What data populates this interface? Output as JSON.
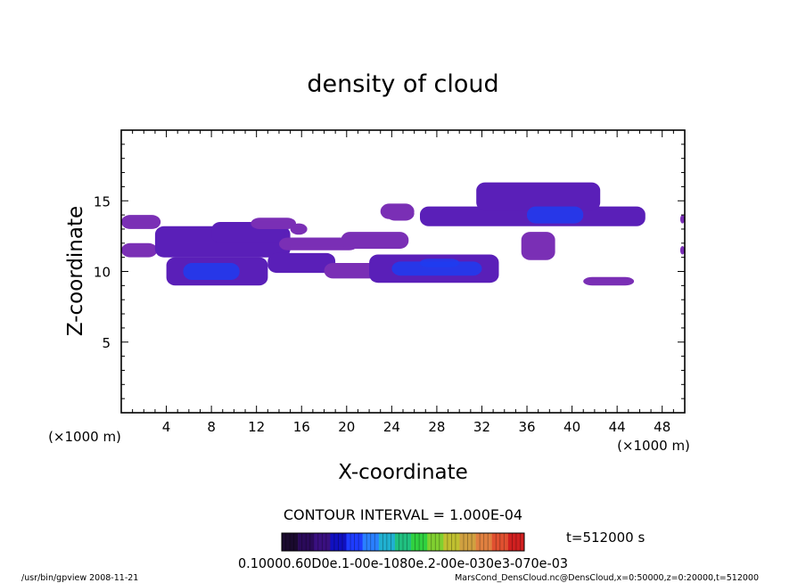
{
  "chart_data": {
    "type": "heatmap",
    "title": "density of cloud",
    "xlabel": "X-coordinate",
    "ylabel": "Z-coordinate",
    "x_unit_label": "(×1000 m)",
    "x_unit_label_right": "(×1000 m)",
    "xlim": [
      0,
      50
    ],
    "ylim": [
      0,
      20
    ],
    "x_ticks": [
      4,
      8,
      12,
      16,
      20,
      24,
      28,
      32,
      36,
      40,
      44,
      48
    ],
    "y_ticks": [
      5,
      10,
      15
    ],
    "x_minor_step": 1,
    "y_minor_step": 1,
    "contour_interval_text": "CONTOUR INTERVAL = 1.000E-04",
    "time_text": "t=512000 s",
    "colorbar_label_text": "0.10000.60D0e.1-00e-1080e.2-00e-030e3-070e-03",
    "colorbar_colors": [
      "#1a0a2e",
      "#2a0a5a",
      "#3a1080",
      "#1010c0",
      "#1e3cff",
      "#2a80ff",
      "#20b0d0",
      "#20c080",
      "#30d040",
      "#80d030",
      "#c0c030",
      "#d0a040",
      "#e08040",
      "#e05030",
      "#d02020"
    ],
    "footer_left": "/usr/bin/gpview   2008-11-21",
    "footer_right": "MarsCond_DensCloud.nc@DensCloud,x=0:50000,z=0:20000,t=512000",
    "bands": [
      {
        "x0": 0.0,
        "x1": 3.5,
        "z0": 13.0,
        "z1": 14.0,
        "level": "low"
      },
      {
        "x0": 0.0,
        "x1": 3.2,
        "z0": 11.0,
        "z1": 12.0,
        "level": "low"
      },
      {
        "x0": 3.0,
        "x1": 15.0,
        "z0": 11.0,
        "z1": 13.2,
        "level": "mid"
      },
      {
        "x0": 4.0,
        "x1": 13.0,
        "z0": 9.0,
        "z1": 11.0,
        "level": "mid"
      },
      {
        "x0": 5.5,
        "x1": 10.5,
        "z0": 9.4,
        "z1": 10.6,
        "level": "high"
      },
      {
        "x0": 8.0,
        "x1": 14.5,
        "z0": 12.0,
        "z1": 13.5,
        "level": "mid"
      },
      {
        "x0": 11.5,
        "x1": 15.5,
        "z0": 13.0,
        "z1": 13.8,
        "level": "low"
      },
      {
        "x0": 13.0,
        "x1": 19.0,
        "z0": 9.9,
        "z1": 11.3,
        "level": "mid"
      },
      {
        "x0": 14.0,
        "x1": 21.0,
        "z0": 11.5,
        "z1": 12.4,
        "level": "low"
      },
      {
        "x0": 19.5,
        "x1": 25.5,
        "z0": 11.6,
        "z1": 12.8,
        "level": "low"
      },
      {
        "x0": 18.0,
        "x1": 33.0,
        "z0": 9.5,
        "z1": 10.6,
        "level": "low"
      },
      {
        "x0": 22.0,
        "x1": 33.5,
        "z0": 9.2,
        "z1": 11.2,
        "level": "mid"
      },
      {
        "x0": 24.0,
        "x1": 32.0,
        "z0": 9.7,
        "z1": 10.7,
        "level": "high"
      },
      {
        "x0": 26.5,
        "x1": 30.0,
        "z0": 10.3,
        "z1": 10.9,
        "level": "high"
      },
      {
        "x0": 23.5,
        "x1": 26.0,
        "z0": 13.6,
        "z1": 14.6,
        "level": "low"
      },
      {
        "x0": 26.5,
        "x1": 46.5,
        "z0": 13.2,
        "z1": 14.6,
        "level": "mid"
      },
      {
        "x0": 31.5,
        "x1": 42.5,
        "z0": 14.3,
        "z1": 16.3,
        "level": "mid"
      },
      {
        "x0": 36.0,
        "x1": 41.0,
        "z0": 13.4,
        "z1": 14.6,
        "level": "high"
      },
      {
        "x0": 35.5,
        "x1": 38.5,
        "z0": 10.8,
        "z1": 12.8,
        "level": "low"
      },
      {
        "x0": 41.0,
        "x1": 45.5,
        "z0": 9.0,
        "z1": 9.6,
        "level": "low"
      },
      {
        "x0": 23.0,
        "x1": 26.0,
        "z0": 13.7,
        "z1": 14.8,
        "level": "low"
      },
      {
        "x0": 15.0,
        "x1": 16.5,
        "z0": 12.6,
        "z1": 13.4,
        "level": "low"
      },
      {
        "x0": 49.6,
        "x1": 50.0,
        "z0": 13.4,
        "z1": 14.0,
        "level": "low"
      },
      {
        "x0": 49.6,
        "x1": 50.0,
        "z0": 11.2,
        "z1": 11.8,
        "level": "low"
      }
    ]
  }
}
